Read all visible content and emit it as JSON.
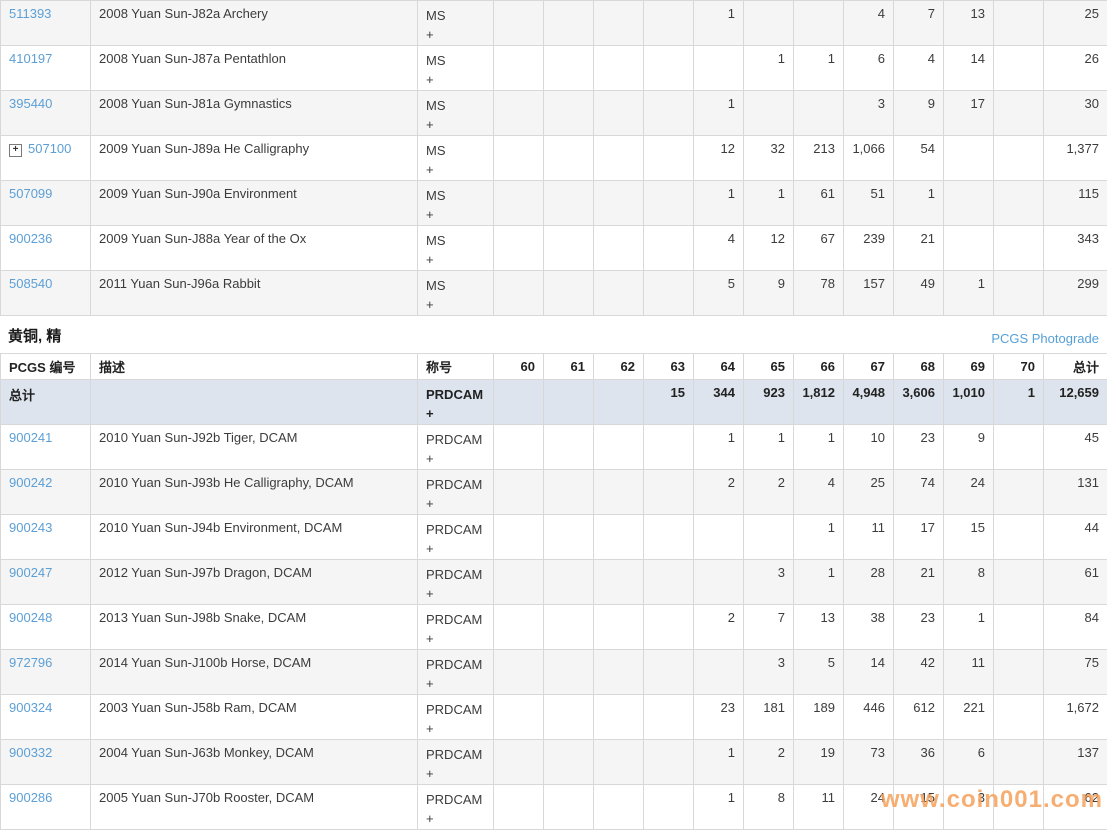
{
  "colors": {
    "link_blue": "#5c9fd6",
    "photograde_blue": "#56a0d6",
    "row_shade": "#f5f5f5",
    "total_row_bg": "#dde4ed",
    "border": "#d8d8d8",
    "watermark_orange": "#f5a05a"
  },
  "icons": {
    "expand": "+"
  },
  "grades": [
    "60",
    "61",
    "62",
    "63",
    "64",
    "65",
    "66",
    "67",
    "68",
    "69",
    "70"
  ],
  "section": {
    "title": "黄铜, 精",
    "photograde_link": "PCGS Photograde"
  },
  "table2_headers": {
    "pcgs": "PCGS 编号",
    "desc": "描述",
    "title": "称号",
    "total": "总计"
  },
  "watermark": "www.coin001.com",
  "table1": {
    "rows": [
      {
        "pcgs": "511393",
        "expand": false,
        "desc": "2008 Yuan Sun-J82a Archery",
        "title": "MS",
        "plus": "+",
        "cells": [
          "",
          "",
          "",
          "",
          "1",
          "",
          "",
          "4",
          "7",
          "13",
          ""
        ],
        "total": "25"
      },
      {
        "pcgs": "410197",
        "expand": false,
        "desc": "2008 Yuan Sun-J87a Pentathlon",
        "title": "MS",
        "plus": "+",
        "cells": [
          "",
          "",
          "",
          "",
          "",
          "1",
          "1",
          "6",
          "4",
          "14",
          ""
        ],
        "total": "26"
      },
      {
        "pcgs": "395440",
        "expand": false,
        "desc": "2008 Yuan Sun-J81a Gymnastics",
        "title": "MS",
        "plus": "+",
        "cells": [
          "",
          "",
          "",
          "",
          "1",
          "",
          "",
          "3",
          "9",
          "17",
          ""
        ],
        "total": "30"
      },
      {
        "pcgs": "507100",
        "expand": true,
        "desc": "2009 Yuan Sun-J89a He Calligraphy",
        "title": "MS",
        "plus": "+",
        "cells": [
          "",
          "",
          "",
          "",
          "12",
          "32",
          "213",
          "1,066",
          "54",
          "",
          ""
        ],
        "total": "1,377"
      },
      {
        "pcgs": "507099",
        "expand": false,
        "desc": "2009 Yuan Sun-J90a Environment",
        "title": "MS",
        "plus": "+",
        "cells": [
          "",
          "",
          "",
          "",
          "1",
          "1",
          "61",
          "51",
          "1",
          "",
          ""
        ],
        "total": "115"
      },
      {
        "pcgs": "900236",
        "expand": false,
        "desc": "2009 Yuan Sun-J88a Year of the Ox",
        "title": "MS",
        "plus": "+",
        "cells": [
          "",
          "",
          "",
          "",
          "4",
          "12",
          "67",
          "239",
          "21",
          "",
          ""
        ],
        "total": "343"
      },
      {
        "pcgs": "508540",
        "expand": false,
        "desc": "2011 Yuan Sun-J96a Rabbit",
        "title": "MS",
        "plus": "+",
        "cells": [
          "",
          "",
          "",
          "",
          "5",
          "9",
          "78",
          "157",
          "49",
          "1",
          ""
        ],
        "total": "299"
      }
    ]
  },
  "table2": {
    "total_row": {
      "pcgs": "总计",
      "expand": false,
      "desc": "",
      "title": "PRDCAM",
      "plus": "+",
      "cells": [
        "",
        "",
        "",
        "15",
        "344",
        "923",
        "1,812",
        "4,948",
        "3,606",
        "1,010",
        "1"
      ],
      "total": "12,659"
    },
    "rows": [
      {
        "pcgs": "900241",
        "expand": false,
        "desc": "2010 Yuan Sun-J92b Tiger, DCAM",
        "title": "PRDCAM",
        "plus": "+",
        "cells": [
          "",
          "",
          "",
          "",
          "1",
          "1",
          "1",
          "10",
          "23",
          "9",
          ""
        ],
        "total": "45"
      },
      {
        "pcgs": "900242",
        "expand": false,
        "desc": "2010 Yuan Sun-J93b He Calligraphy, DCAM",
        "title": "PRDCAM",
        "plus": "+",
        "cells": [
          "",
          "",
          "",
          "",
          "2",
          "2",
          "4",
          "25",
          "74",
          "24",
          ""
        ],
        "total": "131"
      },
      {
        "pcgs": "900243",
        "expand": false,
        "desc": "2010 Yuan Sun-J94b Environment, DCAM",
        "title": "PRDCAM",
        "plus": "+",
        "cells": [
          "",
          "",
          "",
          "",
          "",
          "",
          "1",
          "11",
          "17",
          "15",
          ""
        ],
        "total": "44"
      },
      {
        "pcgs": "900247",
        "expand": false,
        "desc": "2012 Yuan Sun-J97b Dragon, DCAM",
        "title": "PRDCAM",
        "plus": "+",
        "cells": [
          "",
          "",
          "",
          "",
          "",
          "3",
          "1",
          "28",
          "21",
          "8",
          ""
        ],
        "total": "61"
      },
      {
        "pcgs": "900248",
        "expand": false,
        "desc": "2013 Yuan Sun-J98b Snake, DCAM",
        "title": "PRDCAM",
        "plus": "+",
        "cells": [
          "",
          "",
          "",
          "",
          "2",
          "7",
          "13",
          "38",
          "23",
          "1",
          ""
        ],
        "total": "84"
      },
      {
        "pcgs": "972796",
        "expand": false,
        "desc": "2014 Yuan Sun-J100b Horse, DCAM",
        "title": "PRDCAM",
        "plus": "+",
        "cells": [
          "",
          "",
          "",
          "",
          "",
          "3",
          "5",
          "14",
          "42",
          "11",
          ""
        ],
        "total": "75"
      },
      {
        "pcgs": "900324",
        "expand": false,
        "desc": "2003 Yuan Sun-J58b Ram, DCAM",
        "title": "PRDCAM",
        "plus": "+",
        "cells": [
          "",
          "",
          "",
          "",
          "23",
          "181",
          "189",
          "446",
          "612",
          "221",
          ""
        ],
        "total": "1,672"
      },
      {
        "pcgs": "900332",
        "expand": false,
        "desc": "2004 Yuan Sun-J63b Monkey, DCAM",
        "title": "PRDCAM",
        "plus": "+",
        "cells": [
          "",
          "",
          "",
          "",
          "1",
          "2",
          "19",
          "73",
          "36",
          "6",
          ""
        ],
        "total": "137"
      },
      {
        "pcgs": "900286",
        "expand": false,
        "desc": "2005 Yuan Sun-J70b Rooster, DCAM",
        "title": "PRDCAM",
        "plus": "+",
        "cells": [
          "",
          "",
          "",
          "",
          "1",
          "8",
          "11",
          "24",
          "15",
          "3",
          ""
        ],
        "total": "62"
      }
    ]
  }
}
